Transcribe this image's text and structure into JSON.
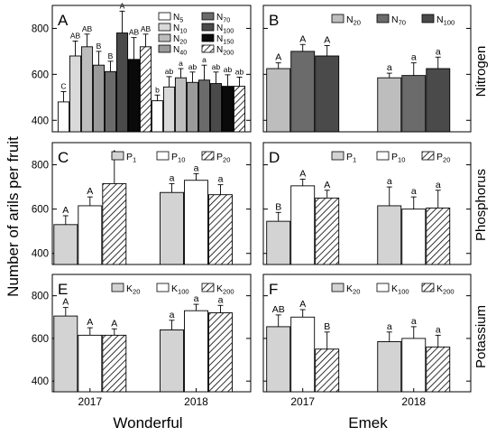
{
  "figure": {
    "y_axis_label": "Number of arils per fruit",
    "x_group_labels": [
      "Wonderful",
      "Emek"
    ],
    "row_labels": [
      "Nitrogen",
      "Phosphorus",
      "Potassium"
    ],
    "year_labels": [
      "2017",
      "2018"
    ],
    "colors": {
      "N5": "#ffffff",
      "N10": "#d9d9d9",
      "N20": "#bdbdbd",
      "N40": "#9a9a9a",
      "N70": "#6b6b6b",
      "N100": "#4a4a4a",
      "N150": "#0a0a0a",
      "N200": "hatch",
      "P1": "#d3d3d3",
      "P10": "#ffffff",
      "P20": "hatch",
      "K20": "#d3d3d3",
      "K100": "#ffffff",
      "K200": "hatch"
    }
  },
  "chart_data": [
    {
      "panel": "A",
      "type": "bar",
      "ylim": [
        350,
        900
      ],
      "yticks": [
        400,
        600,
        800
      ],
      "categories": [
        "2017",
        "2018"
      ],
      "legend_columns": 2,
      "series": [
        {
          "name": "N5",
          "key": "N5",
          "values": [
            480,
            485
          ],
          "errors": [
            45,
            25
          ],
          "letters": [
            "C",
            "b"
          ]
        },
        {
          "name": "N10",
          "key": "N10",
          "values": [
            680,
            545
          ],
          "errors": [
            65,
            45
          ],
          "letters": [
            "AB",
            "ab"
          ]
        },
        {
          "name": "N20",
          "key": "N20",
          "values": [
            720,
            585
          ],
          "errors": [
            55,
            40
          ],
          "letters": [
            "AB",
            "a"
          ]
        },
        {
          "name": "N40",
          "key": "N40",
          "values": [
            640,
            565
          ],
          "errors": [
            60,
            45
          ],
          "letters": [
            "B",
            "ab"
          ]
        },
        {
          "name": "N70",
          "key": "N70",
          "values": [
            612,
            575
          ],
          "errors": [
            45,
            65
          ],
          "letters": [
            "B",
            "a"
          ]
        },
        {
          "name": "N100",
          "key": "N100",
          "values": [
            780,
            560
          ],
          "errors": [
            95,
            50
          ],
          "letters": [
            "A",
            "ab"
          ]
        },
        {
          "name": "N150",
          "key": "N150",
          "values": [
            665,
            548
          ],
          "errors": [
            95,
            50
          ],
          "letters": [
            "AB",
            "ab"
          ]
        },
        {
          "name": "N200",
          "key": "N200",
          "values": [
            720,
            548
          ],
          "errors": [
            55,
            40
          ],
          "letters": [
            "AB",
            "ab"
          ]
        }
      ]
    },
    {
      "panel": "B",
      "type": "bar",
      "ylim": [
        350,
        900
      ],
      "yticks": [
        400,
        600,
        800
      ],
      "categories": [
        "2017",
        "2018"
      ],
      "legend_columns": 3,
      "series": [
        {
          "name": "N20",
          "key": "N20",
          "values": [
            625,
            585
          ],
          "errors": [
            25,
            20
          ],
          "letters": [
            "A",
            "a"
          ]
        },
        {
          "name": "N70",
          "key": "N70",
          "values": [
            700,
            595
          ],
          "errors": [
            30,
            55
          ],
          "letters": [
            "A",
            "a"
          ]
        },
        {
          "name": "N100",
          "key": "N100",
          "values": [
            680,
            625
          ],
          "errors": [
            45,
            50
          ],
          "letters": [
            "A",
            "a"
          ]
        }
      ]
    },
    {
      "panel": "C",
      "type": "bar",
      "ylim": [
        350,
        900
      ],
      "yticks": [
        400,
        600,
        800
      ],
      "categories": [
        "2017",
        "2018"
      ],
      "legend_columns": 3,
      "series": [
        {
          "name": "P1",
          "key": "P1",
          "values": [
            530,
            675
          ],
          "errors": [
            40,
            40
          ],
          "letters": [
            "A",
            "a"
          ]
        },
        {
          "name": "P10",
          "key": "P10",
          "values": [
            615,
            730
          ],
          "errors": [
            40,
            30
          ],
          "letters": [
            "A",
            "a"
          ]
        },
        {
          "name": "P20",
          "key": "P20",
          "values": [
            715,
            665
          ],
          "errors": [
            110,
            45
          ],
          "letters": [
            "A",
            "a"
          ]
        }
      ]
    },
    {
      "panel": "D",
      "type": "bar",
      "ylim": [
        350,
        900
      ],
      "yticks": [
        400,
        600,
        800
      ],
      "categories": [
        "2017",
        "2018"
      ],
      "legend_columns": 3,
      "series": [
        {
          "name": "P1",
          "key": "P1",
          "values": [
            545,
            615
          ],
          "errors": [
            40,
            85
          ],
          "letters": [
            "B",
            "a"
          ]
        },
        {
          "name": "P10",
          "key": "P10",
          "values": [
            705,
            600
          ],
          "errors": [
            30,
            55
          ],
          "letters": [
            "A",
            "a"
          ]
        },
        {
          "name": "P20",
          "key": "P20",
          "values": [
            650,
            605
          ],
          "errors": [
            35,
            80
          ],
          "letters": [
            "A",
            "a"
          ]
        }
      ]
    },
    {
      "panel": "E",
      "type": "bar",
      "ylim": [
        350,
        900
      ],
      "yticks": [
        400,
        600,
        800
      ],
      "categories": [
        "2017",
        "2018"
      ],
      "legend_columns": 3,
      "series": [
        {
          "name": "K20",
          "key": "K20",
          "values": [
            705,
            640
          ],
          "errors": [
            40,
            45
          ],
          "letters": [
            "A",
            "a"
          ]
        },
        {
          "name": "K100",
          "key": "K100",
          "values": [
            615,
            730
          ],
          "errors": [
            35,
            30
          ],
          "letters": [
            "A",
            "a"
          ]
        },
        {
          "name": "K200",
          "key": "K200",
          "values": [
            615,
            720
          ],
          "errors": [
            30,
            35
          ],
          "letters": [
            "A",
            "a"
          ]
        }
      ]
    },
    {
      "panel": "F",
      "type": "bar",
      "ylim": [
        350,
        900
      ],
      "yticks": [
        400,
        600,
        800
      ],
      "categories": [
        "2017",
        "2018"
      ],
      "legend_columns": 3,
      "series": [
        {
          "name": "K20",
          "key": "K20",
          "values": [
            655,
            585
          ],
          "errors": [
            55,
            45
          ],
          "letters": [
            "AB",
            "a"
          ]
        },
        {
          "name": "K100",
          "key": "K100",
          "values": [
            700,
            600
          ],
          "errors": [
            35,
            55
          ],
          "letters": [
            "A",
            "a"
          ]
        },
        {
          "name": "K200",
          "key": "K200",
          "values": [
            550,
            560
          ],
          "errors": [
            80,
            55
          ],
          "letters": [
            "B",
            "a"
          ]
        }
      ]
    }
  ]
}
